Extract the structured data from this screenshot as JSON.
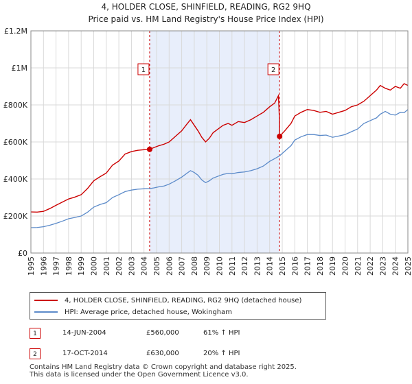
{
  "header": {
    "line1": "4, HOLDER CLOSE, SHINFIELD, READING, RG2 9HQ",
    "line2": "Price paid vs. HM Land Registry's House Price Index (HPI)"
  },
  "colors": {
    "price_paid": "#cc0000",
    "hpi": "#5b8ac9",
    "shade": "#e8eefb",
    "grid": "#d9d9d9"
  },
  "legend": {
    "price_paid_label": "4, HOLDER CLOSE, SHINFIELD, READING, RG2 9HQ (detached house)",
    "hpi_label": "HPI: Average price, detached house, Wokingham"
  },
  "sales": [
    {
      "num": "1",
      "date": "14-JUN-2004",
      "price": "£560,000",
      "hpi": "61% ↑ HPI"
    },
    {
      "num": "2",
      "date": "17-OCT-2014",
      "price": "£630,000",
      "hpi": "20% ↑ HPI"
    }
  ],
  "footer": {
    "line1": "Contains HM Land Registry data © Crown copyright and database right 2025.",
    "line2": "This data is licensed under the Open Government Licence v3.0."
  },
  "chart_data": {
    "type": "line",
    "title": "Price paid vs. HM Land Registry's House Price Index (HPI)",
    "xlim": [
      1995,
      2025
    ],
    "ylim": [
      0,
      1200000
    ],
    "y_ticks": [
      {
        "value": 0,
        "label": "£0"
      },
      {
        "value": 200000,
        "label": "£200K"
      },
      {
        "value": 400000,
        "label": "£400K"
      },
      {
        "value": 600000,
        "label": "£600K"
      },
      {
        "value": 800000,
        "label": "£800K"
      },
      {
        "value": 1000000,
        "label": "£1M"
      },
      {
        "value": 1200000,
        "label": "£1.2M"
      }
    ],
    "x_ticks": [
      "1995",
      "1996",
      "1997",
      "1998",
      "1999",
      "2000",
      "2001",
      "2002",
      "2003",
      "2004",
      "2005",
      "2006",
      "2007",
      "2008",
      "2009",
      "2010",
      "2011",
      "2012",
      "2013",
      "2014",
      "2015",
      "2016",
      "2017",
      "2018",
      "2019",
      "2020",
      "2021",
      "2022",
      "2023",
      "2024",
      "2025"
    ],
    "shaded_range": [
      2004.45,
      2014.79
    ],
    "markers": [
      {
        "label": "1",
        "x": 2004.45,
        "y": 560000
      },
      {
        "label": "2",
        "x": 2014.79,
        "y": 630000
      }
    ],
    "series": [
      {
        "name": "4, HOLDER CLOSE, SHINFIELD, READING, RG2 9HQ (detached house)",
        "x": [
          1995,
          1995.5,
          1996,
          1996.5,
          1997,
          1997.5,
          1998,
          1998.5,
          1999,
          1999.5,
          2000,
          2000.5,
          2001,
          2001.5,
          2002,
          2002.5,
          2003,
          2003.5,
          2004,
          2004.45,
          2004.8,
          2005.2,
          2005.6,
          2006,
          2006.5,
          2007,
          2007.4,
          2007.7,
          2008,
          2008.3,
          2008.6,
          2008.9,
          2009.2,
          2009.5,
          2009.9,
          2010.3,
          2010.7,
          2011,
          2011.5,
          2012,
          2012.5,
          2013,
          2013.5,
          2014,
          2014.4,
          2014.7,
          2014.78,
          2014.79,
          2015.2,
          2015.7,
          2016,
          2016.5,
          2017,
          2017.5,
          2018,
          2018.5,
          2019,
          2019.5,
          2020,
          2020.5,
          2021,
          2021.5,
          2022,
          2022.5,
          2022.8,
          2023.2,
          2023.6,
          2024,
          2024.4,
          2024.7,
          2025
        ],
        "values": [
          222000,
          221000,
          225000,
          240000,
          258000,
          275000,
          292000,
          302000,
          315000,
          348000,
          390000,
          412000,
          432000,
          475000,
          497000,
          535000,
          548000,
          555000,
          558000,
          560000,
          570000,
          580000,
          588000,
          600000,
          630000,
          660000,
          695000,
          720000,
          690000,
          660000,
          625000,
          600000,
          620000,
          650000,
          670000,
          690000,
          700000,
          690000,
          710000,
          705000,
          720000,
          740000,
          760000,
          790000,
          810000,
          850000,
          720000,
          630000,
          660000,
          700000,
          740000,
          760000,
          775000,
          770000,
          760000,
          765000,
          750000,
          760000,
          770000,
          790000,
          800000,
          820000,
          850000,
          880000,
          905000,
          890000,
          880000,
          900000,
          890000,
          915000,
          905000
        ]
      },
      {
        "name": "HPI: Average price, detached house, Wokingham",
        "x": [
          1995,
          1995.5,
          1996,
          1996.5,
          1997,
          1997.5,
          1998,
          1998.5,
          1999,
          1999.5,
          2000,
          2000.5,
          2001,
          2001.5,
          2002,
          2002.5,
          2003,
          2003.5,
          2004,
          2004.45,
          2004.8,
          2005.2,
          2005.6,
          2006,
          2006.5,
          2007,
          2007.4,
          2007.7,
          2008,
          2008.3,
          2008.6,
          2008.9,
          2009.2,
          2009.5,
          2009.9,
          2010.3,
          2010.7,
          2011,
          2011.5,
          2012,
          2012.5,
          2013,
          2013.5,
          2014,
          2014.4,
          2014.79,
          2015.2,
          2015.7,
          2016,
          2016.5,
          2017,
          2017.5,
          2018,
          2018.5,
          2019,
          2019.5,
          2020,
          2020.5,
          2021,
          2021.5,
          2022,
          2022.5,
          2022.8,
          2023.2,
          2023.6,
          2024,
          2024.4,
          2024.7,
          2025
        ],
        "values": [
          137000,
          138000,
          142000,
          150000,
          160000,
          172000,
          185000,
          192000,
          200000,
          220000,
          248000,
          262000,
          272000,
          300000,
          315000,
          332000,
          340000,
          345000,
          347000,
          348000,
          352000,
          358000,
          362000,
          372000,
          390000,
          410000,
          430000,
          445000,
          435000,
          420000,
          395000,
          380000,
          390000,
          405000,
          415000,
          425000,
          430000,
          428000,
          435000,
          438000,
          445000,
          455000,
          470000,
          495000,
          510000,
          525000,
          550000,
          580000,
          610000,
          628000,
          640000,
          640000,
          635000,
          637000,
          625000,
          632000,
          640000,
          655000,
          670000,
          700000,
          715000,
          730000,
          750000,
          765000,
          750000,
          745000,
          760000,
          758000,
          775000
        ]
      }
    ]
  }
}
